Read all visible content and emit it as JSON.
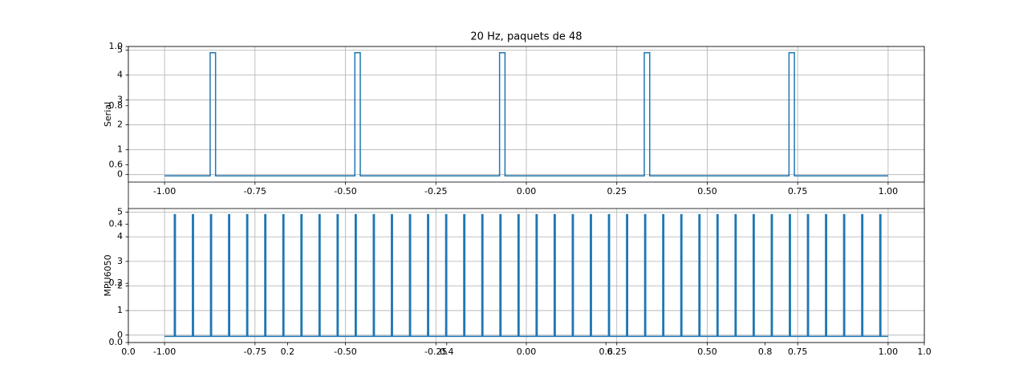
{
  "chart_data": [
    {
      "type": "line",
      "xlim": [
        0,
        1
      ],
      "ylim": [
        0,
        1
      ],
      "xticks": [
        {
          "value": 0,
          "label": "0.0"
        },
        0.2,
        0.4,
        0.6,
        0.8,
        {
          "value": 1,
          "label": "1.0"
        }
      ],
      "yticks": [
        {
          "value": 0,
          "label": "0.0"
        },
        0.2,
        0.4,
        0.6,
        0.8,
        {
          "value": 1,
          "label": "1.0"
        }
      ],
      "grid": false
    },
    {
      "type": "line",
      "title": "20 Hz, paquets de 48",
      "y_label": "Serial",
      "grid": true,
      "xlim": [
        -1.1,
        1.1
      ],
      "ylim": [
        -0.3,
        5.15
      ],
      "xticks": [
        {
          "value": -1,
          "label": "-1.00"
        },
        {
          "value": -0.75,
          "label": "-0.75"
        },
        {
          "value": -0.5,
          "label": "-0.50"
        },
        {
          "value": -0.25,
          "label": "-0.25"
        },
        {
          "value": 0,
          "label": "0.00"
        },
        {
          "value": 0.25,
          "label": "0.25"
        },
        {
          "value": 0.5,
          "label": "0.50"
        },
        {
          "value": 0.75,
          "label": "0.75"
        },
        {
          "value": 1,
          "label": "1.00"
        }
      ],
      "yticks": [
        0,
        1,
        2,
        3,
        4,
        5
      ],
      "x": [
        -1,
        -0.874,
        -0.874,
        -0.859,
        -0.859,
        -0.474,
        -0.474,
        -0.459,
        -0.459,
        -0.074,
        -0.074,
        -0.059,
        -0.059,
        0.326,
        0.326,
        0.341,
        0.341,
        0.726,
        0.726,
        0.741,
        0.741,
        1
      ],
      "series": [
        {
          "color": "#1f77b4",
          "values": [
            -0.05,
            -0.05,
            4.9,
            4.9,
            -0.05,
            -0.05,
            4.9,
            4.9,
            -0.05,
            -0.05,
            4.9,
            4.9,
            -0.05,
            -0.05,
            4.9,
            4.9,
            -0.05,
            -0.05,
            4.9,
            4.9,
            -0.05,
            -0.05
          ]
        }
      ]
    },
    {
      "type": "line",
      "y_label": "MPU6050",
      "grid": true,
      "xlim": [
        -1.1,
        1.1
      ],
      "ylim": [
        -0.3,
        5.15
      ],
      "xticks": [
        {
          "value": -1,
          "label": "-1.00"
        },
        {
          "value": -0.75,
          "label": "-0.75"
        },
        {
          "value": -0.5,
          "label": "-0.50"
        },
        {
          "value": -0.25,
          "label": "-0.25"
        },
        {
          "value": 0,
          "label": "0.00"
        },
        {
          "value": 0.25,
          "label": "0.25"
        },
        {
          "value": 0.5,
          "label": "0.50"
        },
        {
          "value": 0.75,
          "label": "0.75"
        },
        {
          "value": 1,
          "label": "1.00"
        }
      ],
      "yticks": [
        0,
        1,
        2,
        3,
        4,
        5
      ],
      "x": [
        -1,
        -0.973,
        -0.973,
        -0.97,
        -0.97,
        -0.923,
        -0.923,
        -0.92,
        -0.92,
        -0.873,
        -0.873,
        -0.87,
        -0.87,
        -0.823,
        -0.823,
        -0.82,
        -0.82,
        -0.773,
        -0.773,
        -0.77,
        -0.77,
        -0.723,
        -0.723,
        -0.72,
        -0.72,
        -0.673,
        -0.673,
        -0.67,
        -0.67,
        -0.623,
        -0.623,
        -0.62,
        -0.62,
        -0.573,
        -0.573,
        -0.57,
        -0.57,
        -0.523,
        -0.523,
        -0.52,
        -0.52,
        -0.473,
        -0.473,
        -0.47,
        -0.47,
        -0.423,
        -0.423,
        -0.42,
        -0.42,
        -0.373,
        -0.373,
        -0.37,
        -0.37,
        -0.323,
        -0.323,
        -0.32,
        -0.32,
        -0.273,
        -0.273,
        -0.27,
        -0.27,
        -0.223,
        -0.223,
        -0.22,
        -0.22,
        -0.173,
        -0.173,
        -0.17,
        -0.17,
        -0.123,
        -0.123,
        -0.12,
        -0.12,
        -0.073,
        -0.073,
        -0.07,
        -0.07,
        -0.023,
        -0.023,
        -0.02,
        -0.02,
        0.027,
        0.027,
        0.03,
        0.03,
        0.077,
        0.077,
        0.08,
        0.08,
        0.127,
        0.127,
        0.13,
        0.13,
        0.177,
        0.177,
        0.18,
        0.18,
        0.227,
        0.227,
        0.23,
        0.23,
        0.277,
        0.277,
        0.28,
        0.28,
        0.327,
        0.327,
        0.33,
        0.33,
        0.377,
        0.377,
        0.38,
        0.38,
        0.427,
        0.427,
        0.43,
        0.43,
        0.477,
        0.477,
        0.48,
        0.48,
        0.527,
        0.527,
        0.53,
        0.53,
        0.577,
        0.577,
        0.58,
        0.58,
        0.627,
        0.627,
        0.63,
        0.63,
        0.677,
        0.677,
        0.68,
        0.68,
        0.727,
        0.727,
        0.73,
        0.73,
        0.777,
        0.777,
        0.78,
        0.78,
        0.827,
        0.827,
        0.83,
        0.83,
        0.877,
        0.877,
        0.88,
        0.88,
        0.927,
        0.927,
        0.93,
        0.93,
        0.977,
        0.977,
        0.98,
        0.98,
        1
      ],
      "series": [
        {
          "color": "#1f77b4",
          "values": [
            -0.05,
            -0.05,
            4.9,
            4.9,
            -0.05,
            -0.05,
            4.9,
            4.9,
            -0.05,
            -0.05,
            4.9,
            4.9,
            -0.05,
            -0.05,
            4.9,
            4.9,
            -0.05,
            -0.05,
            4.9,
            4.9,
            -0.05,
            -0.05,
            4.9,
            4.9,
            -0.05,
            -0.05,
            4.9,
            4.9,
            -0.05,
            -0.05,
            4.9,
            4.9,
            -0.05,
            -0.05,
            4.9,
            4.9,
            -0.05,
            -0.05,
            4.9,
            4.9,
            -0.05,
            -0.05,
            4.9,
            4.9,
            -0.05,
            -0.05,
            4.9,
            4.9,
            -0.05,
            -0.05,
            4.9,
            4.9,
            -0.05,
            -0.05,
            4.9,
            4.9,
            -0.05,
            -0.05,
            4.9,
            4.9,
            -0.05,
            -0.05,
            4.9,
            4.9,
            -0.05,
            -0.05,
            4.9,
            4.9,
            -0.05,
            -0.05,
            4.9,
            4.9,
            -0.05,
            -0.05,
            4.9,
            4.9,
            -0.05,
            -0.05,
            4.9,
            4.9,
            -0.05,
            -0.05,
            4.9,
            4.9,
            -0.05,
            -0.05,
            4.9,
            4.9,
            -0.05,
            -0.05,
            4.9,
            4.9,
            -0.05,
            -0.05,
            4.9,
            4.9,
            -0.05,
            -0.05,
            4.9,
            4.9,
            -0.05,
            -0.05,
            4.9,
            4.9,
            -0.05,
            -0.05,
            4.9,
            4.9,
            -0.05,
            -0.05,
            4.9,
            4.9,
            -0.05,
            -0.05,
            4.9,
            4.9,
            -0.05,
            -0.05,
            4.9,
            4.9,
            -0.05,
            -0.05,
            4.9,
            4.9,
            -0.05,
            -0.05,
            4.9,
            4.9,
            -0.05,
            -0.05,
            4.9,
            4.9,
            -0.05,
            -0.05,
            4.9,
            4.9,
            -0.05,
            -0.05,
            4.9,
            4.9,
            -0.05,
            -0.05,
            4.9,
            4.9,
            -0.05,
            -0.05,
            4.9,
            4.9,
            -0.05,
            -0.05,
            4.9,
            4.9,
            -0.05,
            -0.05,
            4.9,
            4.9,
            -0.05,
            -0.05,
            4.9,
            4.9,
            -0.05,
            -0.05
          ]
        }
      ]
    }
  ]
}
